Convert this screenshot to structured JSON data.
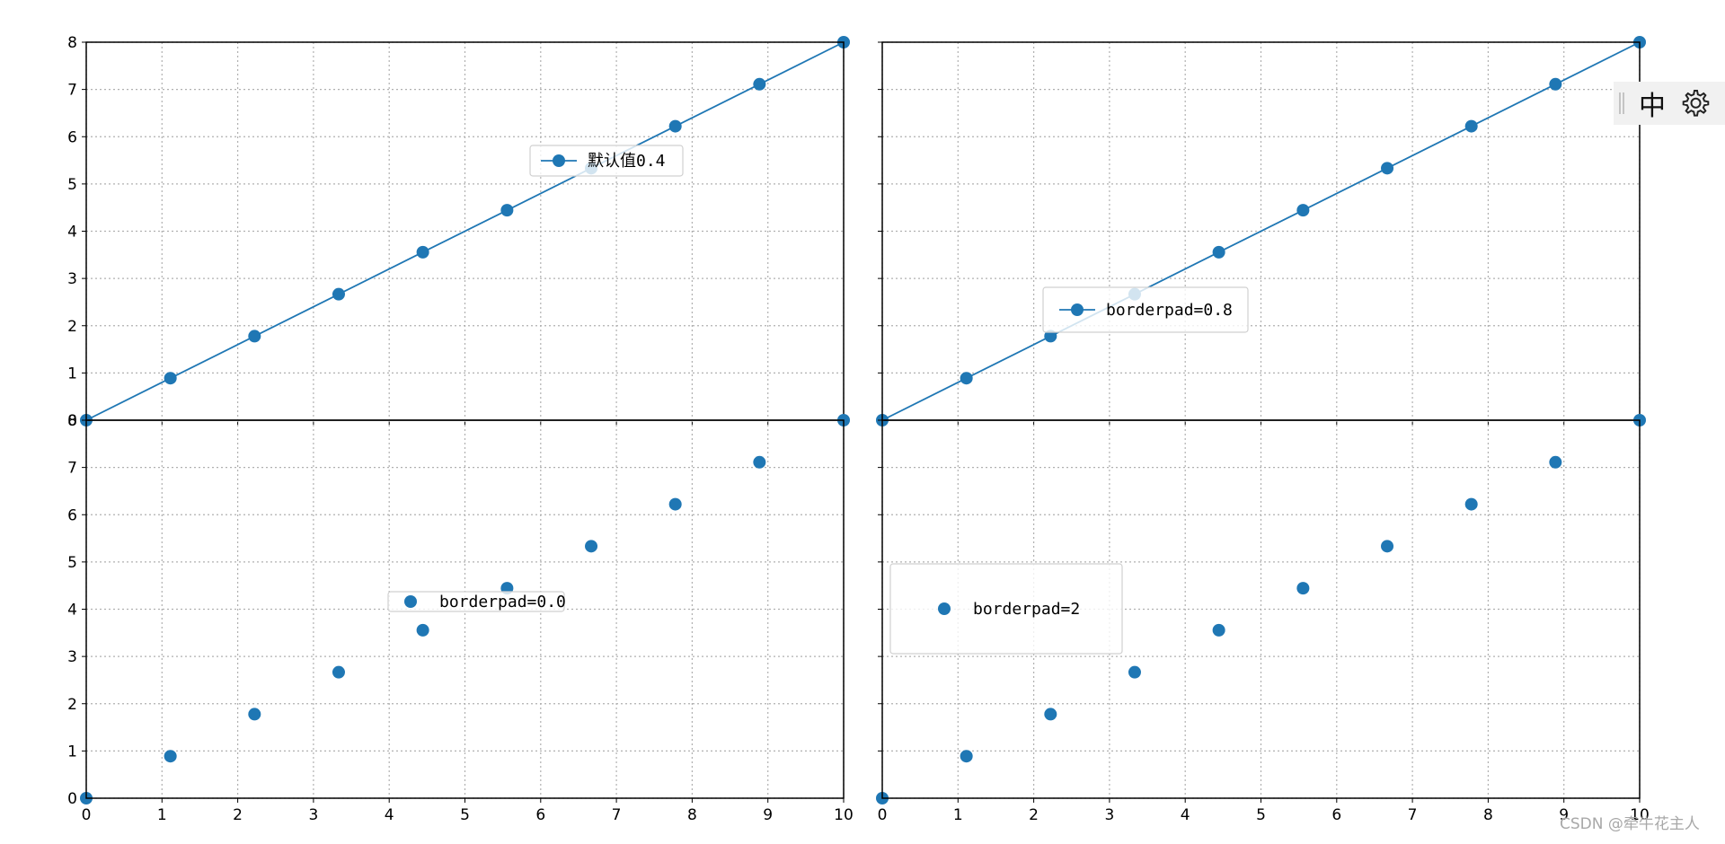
{
  "chart_data": [
    {
      "type": "line",
      "markers": true,
      "x": [
        0,
        1.111,
        2.222,
        3.333,
        4.444,
        5.556,
        6.667,
        7.778,
        8.889,
        10
      ],
      "series": [
        {
          "name": "默认值0.4",
          "values": [
            0,
            0.889,
            1.778,
            2.667,
            3.556,
            4.444,
            5.333,
            6.222,
            7.111,
            8
          ]
        }
      ],
      "xlim": [
        0,
        10
      ],
      "ylim": [
        0,
        8
      ],
      "yticks": [
        "0",
        "1",
        "2",
        "3",
        "4",
        "5",
        "6",
        "7",
        "8"
      ],
      "xticks": [],
      "grid": true,
      "legend": {
        "label": "默认值0.4",
        "placement": "upper center",
        "borderpad": 0.4
      },
      "color": "#1f77b4"
    },
    {
      "type": "line",
      "markers": true,
      "x": [
        0,
        1.111,
        2.222,
        3.333,
        4.444,
        5.556,
        6.667,
        7.778,
        8.889,
        10
      ],
      "series": [
        {
          "name": "borderpad=0.8",
          "values": [
            0,
            0.889,
            1.778,
            2.667,
            3.556,
            4.444,
            5.333,
            6.222,
            7.111,
            8
          ]
        }
      ],
      "xlim": [
        0,
        10
      ],
      "ylim": [
        0,
        8
      ],
      "yticks": [],
      "xticks": [],
      "grid": true,
      "legend": {
        "label": "borderpad=0.8",
        "placement": "center",
        "borderpad": 0.8
      },
      "color": "#1f77b4"
    },
    {
      "type": "scatter",
      "x": [
        0,
        1.111,
        2.222,
        3.333,
        4.444,
        5.556,
        6.667,
        7.778,
        8.889,
        10
      ],
      "series": [
        {
          "name": "borderpad=0.0",
          "values": [
            0,
            0.889,
            1.778,
            2.667,
            3.556,
            4.444,
            5.333,
            6.222,
            7.111,
            8
          ]
        }
      ],
      "xlim": [
        0,
        10
      ],
      "ylim": [
        0,
        8
      ],
      "yticks": [
        "0",
        "1",
        "2",
        "3",
        "4",
        "5",
        "6",
        "7",
        "8"
      ],
      "xticks": [
        "0",
        "1",
        "2",
        "3",
        "4",
        "5",
        "6",
        "7",
        "8",
        "9",
        "10"
      ],
      "grid": true,
      "legend": {
        "label": "borderpad=0.0",
        "placement": "center",
        "borderpad": 0.0
      },
      "color": "#1f77b4"
    },
    {
      "type": "scatter",
      "x": [
        0,
        1.111,
        2.222,
        3.333,
        4.444,
        5.556,
        6.667,
        7.778,
        8.889,
        10
      ],
      "series": [
        {
          "name": "borderpad=2",
          "values": [
            0,
            0.889,
            1.778,
            2.667,
            3.556,
            4.444,
            5.333,
            6.222,
            7.111,
            8
          ]
        }
      ],
      "xlim": [
        0,
        10
      ],
      "ylim": [
        0,
        8
      ],
      "yticks": [],
      "xticks": [
        "0",
        "1",
        "2",
        "3",
        "4",
        "5",
        "6",
        "7",
        "8",
        "9",
        "10"
      ],
      "grid": true,
      "legend": {
        "label": "borderpad=2",
        "placement": "center left",
        "borderpad": 2
      },
      "color": "#1f77b4"
    }
  ],
  "ime_toolbar": {
    "mode_label": "中",
    "settings_icon": "gear-icon"
  },
  "watermark": "CSDN @牵牛花主人"
}
